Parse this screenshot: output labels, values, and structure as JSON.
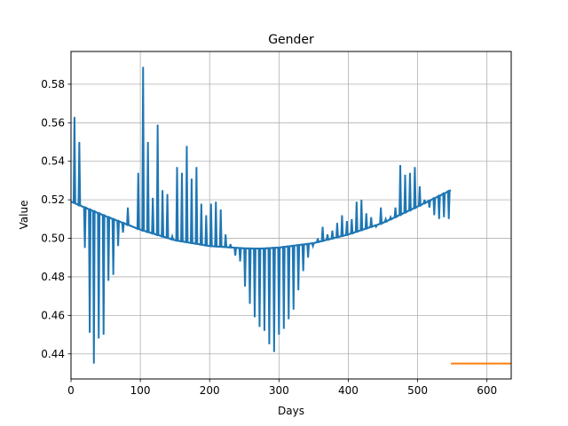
{
  "chart_data": {
    "type": "line",
    "title": "Gender",
    "xlabel": "Days",
    "ylabel": "Value",
    "xlim": [
      0,
      635
    ],
    "ylim": [
      0.427,
      0.597
    ],
    "grid": true,
    "xticks": [
      0,
      100,
      200,
      300,
      400,
      500,
      600
    ],
    "yticks": [
      0.44,
      0.46,
      0.48,
      0.5,
      0.52,
      0.54,
      0.56,
      0.58
    ],
    "colors": {
      "observed": "#1f77b4",
      "trend": "#1f77b4",
      "forecast": "#ff7f0e"
    },
    "series": [
      {
        "role": "observed",
        "x": [
          5,
          12,
          20,
          27,
          33,
          40,
          47,
          54,
          61,
          68,
          75,
          82,
          97,
          104,
          111,
          118,
          125,
          132,
          139,
          146,
          153,
          160,
          167,
          174,
          181,
          188,
          195,
          202,
          209,
          216,
          223,
          230,
          237,
          244,
          251,
          258,
          265,
          272,
          279,
          286,
          293,
          300,
          307,
          314,
          321,
          328,
          335,
          342,
          349,
          356,
          363,
          370,
          377,
          384,
          391,
          398,
          405,
          412,
          419,
          426,
          433,
          440,
          447,
          454,
          461,
          468,
          475,
          482,
          489,
          496,
          503,
          510,
          517,
          524,
          531,
          538,
          545
        ],
        "values": [
          0.563,
          0.55,
          0.495,
          0.451,
          0.435,
          0.448,
          0.45,
          0.478,
          0.481,
          0.496,
          0.503,
          0.516,
          0.534,
          0.589,
          0.55,
          0.521,
          0.559,
          0.525,
          0.523,
          0.501,
          0.537,
          0.534,
          0.548,
          0.531,
          0.537,
          0.518,
          0.512,
          0.518,
          0.519,
          0.515,
          0.502,
          0.497,
          0.491,
          0.488,
          0.475,
          0.466,
          0.459,
          0.454,
          0.452,
          0.445,
          0.441,
          0.45,
          0.453,
          0.458,
          0.463,
          0.473,
          0.483,
          0.49,
          0.496,
          0.5,
          0.506,
          0.502,
          0.504,
          0.508,
          0.512,
          0.509,
          0.51,
          0.519,
          0.52,
          0.513,
          0.511,
          0.506,
          0.516,
          0.51,
          0.511,
          0.516,
          0.538,
          0.533,
          0.534,
          0.537,
          0.527,
          0.52,
          0.516,
          0.512,
          0.51,
          0.511,
          0.51
        ]
      },
      {
        "role": "trend",
        "x": [
          0,
          50,
          100,
          150,
          200,
          250,
          275,
          300,
          350,
          400,
          450,
          500,
          548
        ],
        "values": [
          0.519,
          0.5115,
          0.5045,
          0.499,
          0.496,
          0.4948,
          0.4947,
          0.4952,
          0.4975,
          0.502,
          0.508,
          0.5165,
          0.525
        ]
      },
      {
        "role": "forecast",
        "x": [
          548,
          635
        ],
        "values": [
          0.435,
          0.435
        ]
      }
    ]
  }
}
